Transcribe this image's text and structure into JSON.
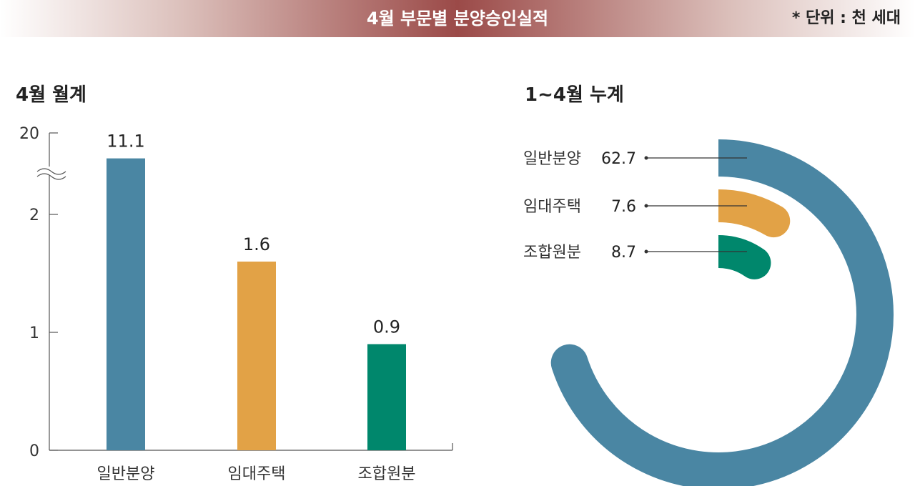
{
  "header": {
    "title": "4월 부문별 분양승인실적",
    "unit": "* 단위 : 천 세대"
  },
  "chart_data": [
    {
      "type": "bar",
      "title": "4월 월계",
      "categories": [
        "일반분양",
        "임대주택",
        "조합원분"
      ],
      "values": [
        11.1,
        1.6,
        0.9
      ],
      "value_labels": [
        "11.1",
        "1.6",
        "0.9"
      ],
      "yticks": [
        "0",
        "1",
        "2",
        "20"
      ],
      "ylim": [
        0,
        20
      ],
      "axis_break": true,
      "colors": [
        "#4a86a3",
        "#e2a246",
        "#00876c"
      ]
    },
    {
      "type": "pie",
      "title": "1~4월 누계",
      "style": "radial-arc",
      "categories": [
        "일반분양",
        "임대주택",
        "조합원분"
      ],
      "values": [
        62.7,
        7.6,
        8.7
      ],
      "value_labels": [
        "62.7",
        "7.6",
        "8.7"
      ],
      "colors": [
        "#4a86a3",
        "#e2a246",
        "#00876c"
      ]
    }
  ]
}
